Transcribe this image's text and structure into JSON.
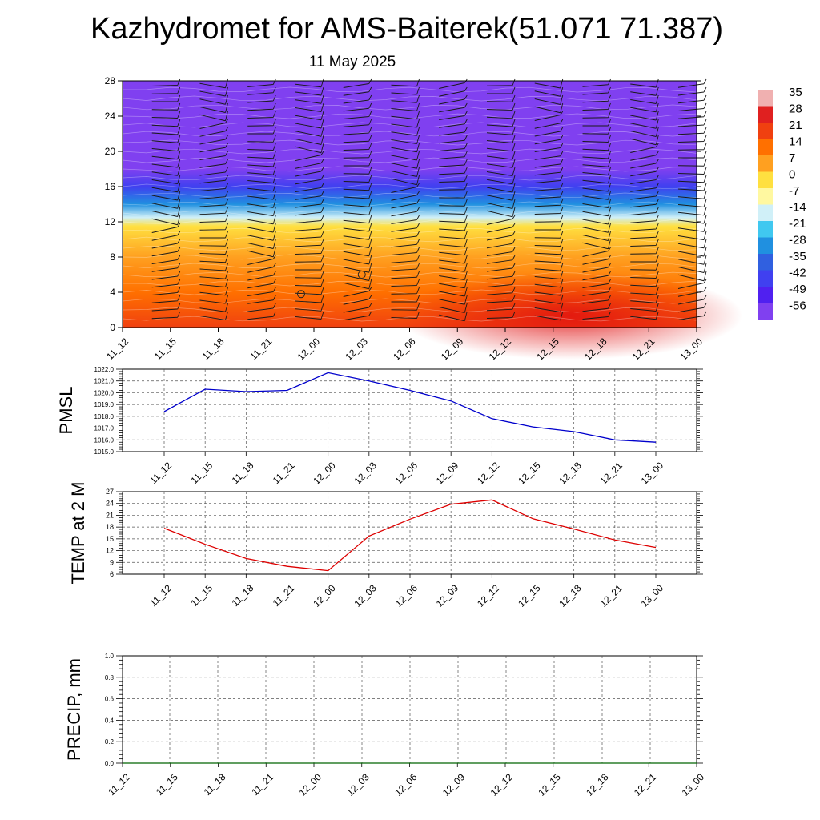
{
  "title": "Kazhydromet for AMS-Baiterek(51.071 71.387)",
  "subtitle": "11 May 2025",
  "time_labels": [
    "11_12",
    "11_15",
    "11_18",
    "11_21",
    "12_00",
    "12_03",
    "12_06",
    "12_09",
    "12_12",
    "12_15",
    "12_18",
    "12_21",
    "13_00"
  ],
  "colorbar": {
    "labels": [
      "35",
      "28",
      "21",
      "14",
      "7",
      "0",
      "-7",
      "-14",
      "-21",
      "-28",
      "-35",
      "-42",
      "-49",
      "-56"
    ],
    "colors": [
      "#f0b0b0",
      "#e02020",
      "#f04010",
      "#ff7000",
      "#ffa020",
      "#ffe040",
      "#fff8a0",
      "#d0f0f8",
      "#40c8f0",
      "#2090e0",
      "#3060e0",
      "#4040f0",
      "#5020f0",
      "#8040f0"
    ]
  },
  "chart_data": [
    {
      "type": "heatmap",
      "description_axis": "height level vs forecast time",
      "ylim": [
        0,
        28
      ],
      "yticks": [
        "0",
        "4",
        "8",
        "12",
        "16",
        "20",
        "24",
        "28"
      ],
      "x": [
        "11_12",
        "11_15",
        "11_18",
        "11_21",
        "12_00",
        "12_03",
        "12_06",
        "12_09",
        "12_12",
        "12_15",
        "12_18",
        "12_21",
        "13_00"
      ],
      "colorbar_range": [
        -56,
        35
      ],
      "level_temperature": [
        {
          "level": 0,
          "value": 22
        },
        {
          "level": 4,
          "value": 14
        },
        {
          "level": 8,
          "value": 6
        },
        {
          "level": 11.5,
          "value": -3
        },
        {
          "level": 12.5,
          "value": -12
        },
        {
          "level": 14,
          "value": -25
        },
        {
          "level": 16,
          "value": -40
        },
        {
          "level": 18,
          "value": -54
        },
        {
          "level": 23,
          "value": -58
        },
        {
          "level": 28,
          "value": -54
        }
      ]
    },
    {
      "type": "line",
      "ylabel": "PMSL",
      "ylim": [
        1015.0,
        1022.0
      ],
      "yticks": [
        "1015.0",
        "1016.0",
        "1017.0",
        "1018.0",
        "1019.0",
        "1020.0",
        "1021.0",
        "1022.0"
      ],
      "x": [
        "11_12",
        "11_15",
        "11_18",
        "11_21",
        "12_00",
        "12_03",
        "12_06",
        "12_09",
        "12_12",
        "12_15",
        "12_18",
        "12_21",
        "13_00"
      ],
      "series": [
        {
          "color": "#0000cc",
          "values": [
            1018.4,
            1020.3,
            1020.1,
            1020.2,
            1021.7,
            1021.0,
            1020.2,
            1019.3,
            1017.8,
            1017.1,
            1016.7,
            1016.0,
            1015.8
          ]
        }
      ]
    },
    {
      "type": "line",
      "ylabel": "TEMP at 2 M",
      "ylim": [
        6,
        27
      ],
      "yticks": [
        "6",
        "9",
        "12",
        "15",
        "18",
        "21",
        "24",
        "27"
      ],
      "x": [
        "11_12",
        "11_15",
        "11_18",
        "11_21",
        "12_00",
        "12_03",
        "12_06",
        "12_09",
        "12_12",
        "12_15",
        "12_18",
        "12_21",
        "13_00"
      ],
      "series": [
        {
          "color": "#dd0000",
          "values": [
            17.7,
            13.6,
            10.0,
            8.0,
            6.9,
            15.7,
            20.0,
            23.8,
            24.9,
            20.1,
            17.5,
            14.7,
            12.8
          ]
        }
      ]
    },
    {
      "type": "line",
      "ylabel": "PRECIP, mm",
      "ylim": [
        0.0,
        1.0
      ],
      "yticks": [
        "0.0",
        "0.2",
        "0.4",
        "0.6",
        "0.8",
        "1.0"
      ],
      "x": [
        "11_12",
        "11_15",
        "11_18",
        "11_21",
        "12_00",
        "12_03",
        "12_06",
        "12_09",
        "12_12",
        "12_15",
        "12_18",
        "12_21",
        "13_00"
      ],
      "series": [
        {
          "color": "#006400",
          "values": [
            0,
            0,
            0,
            0,
            0,
            0,
            0,
            0,
            0,
            0,
            0,
            0,
            0
          ]
        }
      ]
    }
  ]
}
